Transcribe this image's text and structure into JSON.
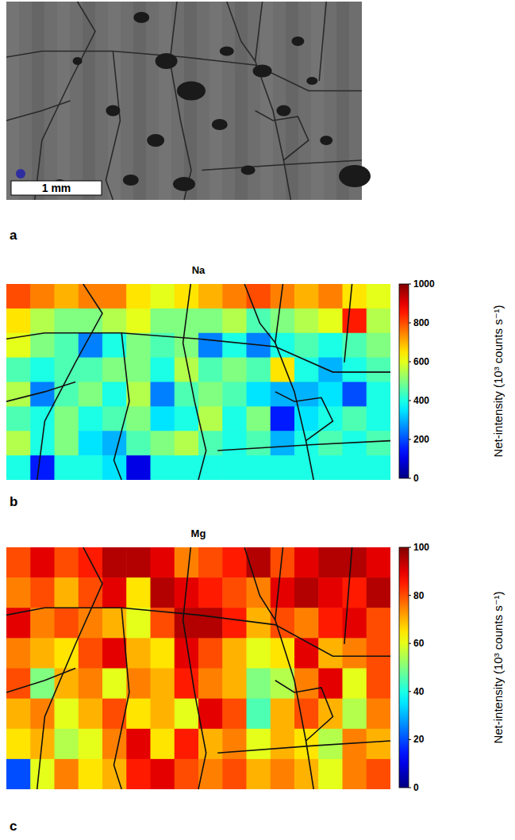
{
  "chart_data": [
    {
      "type": "image",
      "label": "a",
      "annotations": [
        "1 mm"
      ]
    },
    {
      "type": "heatmap",
      "label": "b",
      "title": "Na",
      "cells": [
        [
          800,
          750,
          700,
          750,
          750,
          650,
          600,
          650,
          700,
          750,
          800,
          750,
          700,
          750,
          650,
          600
        ],
        [
          650,
          550,
          500,
          500,
          550,
          600,
          500,
          500,
          500,
          550,
          450,
          500,
          550,
          600,
          850,
          550
        ],
        [
          600,
          500,
          450,
          250,
          400,
          500,
          450,
          500,
          250,
          400,
          250,
          400,
          450,
          400,
          450,
          500
        ],
        [
          450,
          400,
          450,
          450,
          500,
          500,
          400,
          550,
          450,
          500,
          450,
          650,
          400,
          300,
          400,
          450
        ],
        [
          550,
          250,
          450,
          500,
          400,
          550,
          250,
          450,
          500,
          450,
          350,
          300,
          300,
          350,
          200,
          400
        ],
        [
          450,
          400,
          500,
          400,
          450,
          500,
          350,
          400,
          550,
          400,
          500,
          150,
          350,
          400,
          450,
          400
        ],
        [
          550,
          400,
          500,
          350,
          300,
          450,
          500,
          550,
          450,
          400,
          450,
          300,
          400,
          450,
          400,
          450
        ],
        [
          400,
          150,
          400,
          400,
          350,
          100,
          400,
          400,
          400,
          400,
          400,
          400,
          400,
          400,
          400,
          400
        ]
      ],
      "colorbar": {
        "title": "Net-intensity (10³ counts s⁻¹)",
        "range": [
          0,
          1000
        ],
        "ticks": [
          0,
          200,
          400,
          600,
          800,
          1000
        ]
      }
    },
    {
      "type": "heatmap",
      "label": "c",
      "title": "Mg",
      "cells": [
        [
          80,
          90,
          80,
          85,
          95,
          95,
          90,
          75,
          80,
          85,
          95,
          80,
          90,
          95,
          95,
          90
        ],
        [
          75,
          80,
          70,
          80,
          90,
          65,
          95,
          90,
          85,
          80,
          75,
          90,
          95,
          90,
          85,
          95
        ],
        [
          90,
          75,
          80,
          75,
          70,
          60,
          80,
          95,
          95,
          85,
          70,
          80,
          75,
          85,
          90,
          80
        ],
        [
          75,
          70,
          65,
          80,
          90,
          70,
          65,
          90,
          80,
          70,
          60,
          65,
          90,
          70,
          75,
          80
        ],
        [
          80,
          50,
          70,
          75,
          60,
          75,
          70,
          85,
          75,
          70,
          50,
          55,
          75,
          90,
          60,
          80
        ],
        [
          70,
          75,
          60,
          70,
          80,
          65,
          70,
          60,
          90,
          80,
          45,
          70,
          80,
          70,
          55,
          75
        ],
        [
          65,
          70,
          55,
          60,
          75,
          90,
          65,
          85,
          70,
          75,
          60,
          70,
          65,
          55,
          75,
          70
        ],
        [
          20,
          60,
          75,
          65,
          70,
          85,
          90,
          80,
          75,
          80,
          70,
          75,
          70,
          60,
          75,
          80
        ]
      ],
      "colorbar": {
        "title": "Net-intensity (10³ counts s⁻¹)",
        "range": [
          0,
          100
        ],
        "ticks": [
          0,
          20,
          40,
          60,
          80,
          100
        ]
      }
    }
  ]
}
